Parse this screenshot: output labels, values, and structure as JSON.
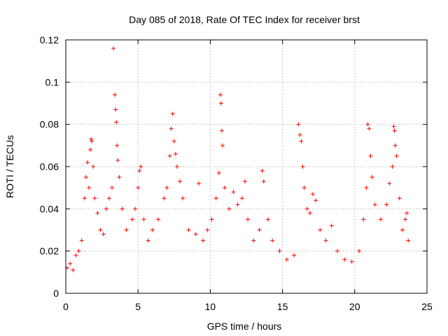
{
  "chart_data": {
    "type": "scatter",
    "title": "Day 085 of 2018, Rate Of TEC Index for receiver brst",
    "xlabel": "GPS time / hours",
    "ylabel": "ROTI / TECUs",
    "xlim": [
      0,
      25
    ],
    "ylim": [
      0,
      0.12
    ],
    "xticks": [
      "0",
      "5",
      "10",
      "15",
      "20",
      "25"
    ],
    "yticks": [
      "0",
      "0.02",
      "0.04",
      "0.06",
      "0.08",
      "0.1",
      "0.12"
    ],
    "grid": true,
    "marker": "plus",
    "color": "#ff0000",
    "x_range_of_data": [
      0,
      23.7
    ],
    "series": [
      {
        "values": [
          [
            0.1,
            0.012
          ],
          [
            0.3,
            0.014
          ],
          [
            0.5,
            0.011
          ],
          [
            0.7,
            0.018
          ],
          [
            0.9,
            0.02
          ],
          [
            1.1,
            0.025
          ],
          [
            1.3,
            0.045
          ],
          [
            1.4,
            0.055
          ],
          [
            1.5,
            0.062
          ],
          [
            1.6,
            0.05
          ],
          [
            1.7,
            0.068
          ],
          [
            1.75,
            0.073
          ],
          [
            1.8,
            0.072
          ],
          [
            1.9,
            0.06
          ],
          [
            2.0,
            0.045
          ],
          [
            2.2,
            0.038
          ],
          [
            2.4,
            0.03
          ],
          [
            2.6,
            0.028
          ],
          [
            2.8,
            0.04
          ],
          [
            3.0,
            0.045
          ],
          [
            3.2,
            0.05
          ],
          [
            3.3,
            0.116
          ],
          [
            3.4,
            0.094
          ],
          [
            3.45,
            0.087
          ],
          [
            3.5,
            0.081
          ],
          [
            3.55,
            0.07
          ],
          [
            3.6,
            0.063
          ],
          [
            3.7,
            0.055
          ],
          [
            3.9,
            0.04
          ],
          [
            4.2,
            0.03
          ],
          [
            4.6,
            0.035
          ],
          [
            4.8,
            0.04
          ],
          [
            5.0,
            0.05
          ],
          [
            5.1,
            0.058
          ],
          [
            5.2,
            0.06
          ],
          [
            5.4,
            0.035
          ],
          [
            5.7,
            0.025
          ],
          [
            6.0,
            0.03
          ],
          [
            6.4,
            0.035
          ],
          [
            6.8,
            0.045
          ],
          [
            7.0,
            0.05
          ],
          [
            7.2,
            0.065
          ],
          [
            7.3,
            0.078
          ],
          [
            7.4,
            0.085
          ],
          [
            7.5,
            0.072
          ],
          [
            7.6,
            0.066
          ],
          [
            7.7,
            0.06
          ],
          [
            7.9,
            0.053
          ],
          [
            8.1,
            0.045
          ],
          [
            8.5,
            0.03
          ],
          [
            9.0,
            0.028
          ],
          [
            9.2,
            0.052
          ],
          [
            9.5,
            0.025
          ],
          [
            9.8,
            0.03
          ],
          [
            10.1,
            0.035
          ],
          [
            10.4,
            0.045
          ],
          [
            10.6,
            0.057
          ],
          [
            10.7,
            0.094
          ],
          [
            10.75,
            0.09
          ],
          [
            10.8,
            0.077
          ],
          [
            10.85,
            0.07
          ],
          [
            11.0,
            0.05
          ],
          [
            11.3,
            0.04
          ],
          [
            11.6,
            0.048
          ],
          [
            11.9,
            0.042
          ],
          [
            12.2,
            0.045
          ],
          [
            12.4,
            0.053
          ],
          [
            12.6,
            0.035
          ],
          [
            13.0,
            0.025
          ],
          [
            13.4,
            0.03
          ],
          [
            13.6,
            0.058
          ],
          [
            13.7,
            0.053
          ],
          [
            14.0,
            0.035
          ],
          [
            14.3,
            0.025
          ],
          [
            14.8,
            0.02
          ],
          [
            15.3,
            0.016
          ],
          [
            15.8,
            0.018
          ],
          [
            16.1,
            0.08
          ],
          [
            16.2,
            0.075
          ],
          [
            16.3,
            0.072
          ],
          [
            16.4,
            0.06
          ],
          [
            16.5,
            0.05
          ],
          [
            16.7,
            0.04
          ],
          [
            16.9,
            0.038
          ],
          [
            17.1,
            0.047
          ],
          [
            17.3,
            0.044
          ],
          [
            17.6,
            0.03
          ],
          [
            18.0,
            0.025
          ],
          [
            18.4,
            0.032
          ],
          [
            18.8,
            0.02
          ],
          [
            19.3,
            0.016
          ],
          [
            19.8,
            0.015
          ],
          [
            20.3,
            0.02
          ],
          [
            20.6,
            0.035
          ],
          [
            20.8,
            0.05
          ],
          [
            20.9,
            0.08
          ],
          [
            21.0,
            0.078
          ],
          [
            21.1,
            0.065
          ],
          [
            21.2,
            0.055
          ],
          [
            21.4,
            0.042
          ],
          [
            21.8,
            0.035
          ],
          [
            22.2,
            0.042
          ],
          [
            22.4,
            0.052
          ],
          [
            22.6,
            0.06
          ],
          [
            22.7,
            0.079
          ],
          [
            22.75,
            0.077
          ],
          [
            22.8,
            0.07
          ],
          [
            22.9,
            0.065
          ],
          [
            23.1,
            0.045
          ],
          [
            23.3,
            0.03
          ],
          [
            23.5,
            0.035
          ],
          [
            23.6,
            0.038
          ],
          [
            23.7,
            0.025
          ]
        ]
      }
    ]
  }
}
